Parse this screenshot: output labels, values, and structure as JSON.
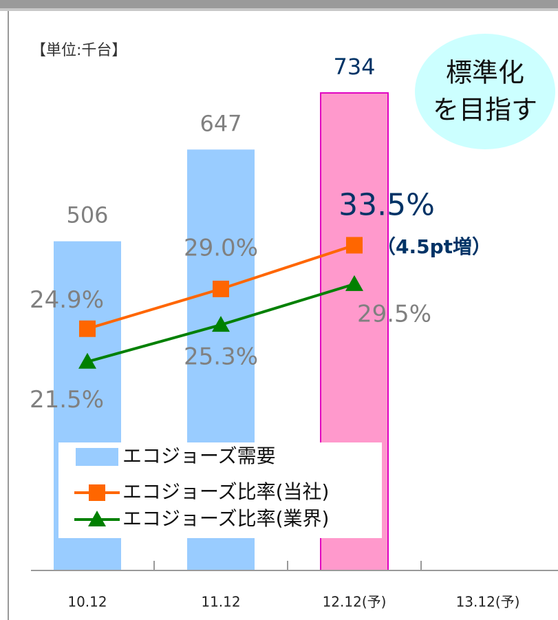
{
  "chart_data": {
    "type": "bar_line",
    "unit_label": "【単位:千台】",
    "categories": [
      "10.12",
      "11.12",
      "12.12(予)",
      "13.12(予)"
    ],
    "ylim": [
      0,
      861
    ],
    "y2lim": [
      0,
      57.7
    ],
    "series": [
      {
        "name": "エコジョーズ需要",
        "type": "bar",
        "color": "#99ccff",
        "colors": [
          "#99ccff",
          "#99ccff",
          "#ff99cc",
          null
        ],
        "values": [
          506,
          647,
          734,
          null
        ],
        "value_label_colors": [
          "#808080",
          "#808080",
          "#003366",
          null
        ]
      },
      {
        "name": "エコジョーズ比率(当社)",
        "type": "line",
        "axis": "y2",
        "color": "#ff6600",
        "marker": "square",
        "values": [
          24.9,
          29.0,
          33.5,
          null
        ],
        "value_labels": [
          "24.9%",
          "29.0%",
          "33.5%",
          null
        ],
        "value_label_colors": [
          "#808080",
          "#808080",
          "#003366",
          null
        ]
      },
      {
        "name": "エコジョーズ比率(業界)",
        "type": "line",
        "axis": "y2",
        "color": "#008000",
        "marker": "triangle",
        "values": [
          21.5,
          25.3,
          29.5,
          null
        ],
        "value_labels": [
          "21.5%",
          "25.3%",
          "29.5%",
          null
        ],
        "value_label_colors": [
          "#808080",
          "#808080",
          "#808080",
          null
        ]
      }
    ],
    "annotations": {
      "increase": "（4.5pt増）",
      "bubble": [
        "標準化",
        "を目指す"
      ]
    }
  }
}
